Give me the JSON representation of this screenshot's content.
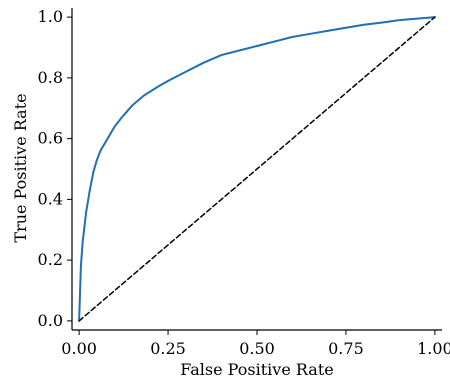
{
  "chart_data": {
    "type": "line",
    "xlabel": "False Positive Rate",
    "ylabel": "True Positive Rate",
    "xlim": [
      -0.02,
      1.02
    ],
    "ylim": [
      -0.03,
      1.03
    ],
    "grid": false,
    "x_ticks": [
      0.0,
      0.25,
      0.5,
      0.75,
      1.0
    ],
    "x_tick_labels": [
      "0.00",
      "0.25",
      "0.50",
      "0.75",
      "1.00"
    ],
    "y_ticks": [
      0.0,
      0.2,
      0.4,
      0.6,
      0.8,
      1.0
    ],
    "y_tick_labels": [
      "0.0",
      "0.2",
      "0.4",
      "0.6",
      "0.8",
      "1.0"
    ],
    "series": [
      {
        "color": "#1f6fb4",
        "style": "solid",
        "x": [
          0.0,
          0.005,
          0.01,
          0.02,
          0.03,
          0.04,
          0.05,
          0.06,
          0.08,
          0.1,
          0.12,
          0.15,
          0.18,
          0.22,
          0.25,
          0.3,
          0.35,
          0.4,
          0.45,
          0.5,
          0.55,
          0.6,
          0.65,
          0.7,
          0.75,
          0.8,
          0.85,
          0.9,
          0.95,
          1.0
        ],
        "y": [
          0.0,
          0.18,
          0.26,
          0.36,
          0.43,
          0.49,
          0.53,
          0.56,
          0.6,
          0.64,
          0.67,
          0.71,
          0.74,
          0.77,
          0.79,
          0.82,
          0.85,
          0.875,
          0.89,
          0.905,
          0.92,
          0.935,
          0.945,
          0.955,
          0.965,
          0.975,
          0.982,
          0.99,
          0.995,
          1.0
        ]
      },
      {
        "color": "#000000",
        "style": "dashed",
        "x": [
          0.0,
          1.0
        ],
        "y": [
          0.0,
          1.0
        ]
      }
    ]
  }
}
